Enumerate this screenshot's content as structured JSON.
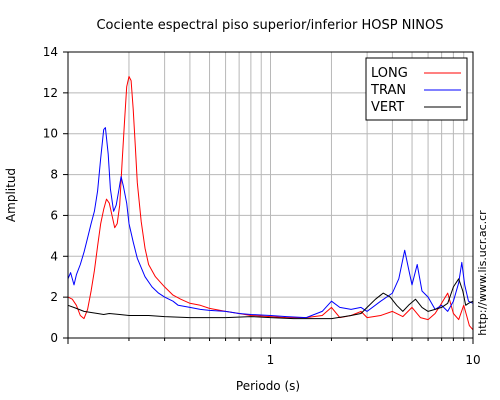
{
  "chart_data": {
    "type": "line",
    "title": "Cociente espectral piso superior/inferior  HOSP NINOS",
    "xlabel": "Periodo (s)",
    "ylabel": "Amplitud",
    "x_scale": "log",
    "xlim": [
      0.1,
      10
    ],
    "ylim": [
      0,
      14
    ],
    "x_tick_labels": [
      "1",
      "10"
    ],
    "y_ticks": [
      0,
      2,
      4,
      6,
      8,
      10,
      12,
      14
    ],
    "grid": true,
    "legend_position": "top-right",
    "side_text": "http://www.lis.ucr.ac.cr",
    "series": [
      {
        "name": "LONG",
        "color": "#ff0000",
        "points": [
          [
            0.1,
            2.0
          ],
          [
            0.105,
            1.9
          ],
          [
            0.11,
            1.6
          ],
          [
            0.115,
            1.1
          ],
          [
            0.12,
            0.95
          ],
          [
            0.125,
            1.4
          ],
          [
            0.13,
            2.3
          ],
          [
            0.135,
            3.3
          ],
          [
            0.14,
            4.5
          ],
          [
            0.145,
            5.6
          ],
          [
            0.15,
            6.3
          ],
          [
            0.155,
            6.8
          ],
          [
            0.16,
            6.6
          ],
          [
            0.165,
            6.0
          ],
          [
            0.17,
            5.4
          ],
          [
            0.175,
            5.6
          ],
          [
            0.18,
            6.5
          ],
          [
            0.185,
            8.6
          ],
          [
            0.19,
            10.5
          ],
          [
            0.195,
            12.3
          ],
          [
            0.2,
            12.8
          ],
          [
            0.205,
            12.6
          ],
          [
            0.21,
            11.2
          ],
          [
            0.215,
            9.4
          ],
          [
            0.22,
            7.6
          ],
          [
            0.23,
            5.7
          ],
          [
            0.24,
            4.4
          ],
          [
            0.25,
            3.6
          ],
          [
            0.27,
            3.0
          ],
          [
            0.3,
            2.5
          ],
          [
            0.33,
            2.1
          ],
          [
            0.36,
            1.9
          ],
          [
            0.4,
            1.7
          ],
          [
            0.45,
            1.6
          ],
          [
            0.5,
            1.45
          ],
          [
            0.6,
            1.3
          ],
          [
            0.7,
            1.2
          ],
          [
            0.8,
            1.1
          ],
          [
            1.0,
            1.05
          ],
          [
            1.2,
            1.0
          ],
          [
            1.5,
            1.0
          ],
          [
            1.8,
            1.1
          ],
          [
            2.0,
            1.5
          ],
          [
            2.2,
            1.0
          ],
          [
            2.5,
            1.1
          ],
          [
            2.8,
            1.3
          ],
          [
            3.0,
            1.0
          ],
          [
            3.5,
            1.1
          ],
          [
            4.0,
            1.3
          ],
          [
            4.5,
            1.05
          ],
          [
            5.0,
            1.5
          ],
          [
            5.5,
            1.0
          ],
          [
            6.0,
            0.9
          ],
          [
            6.5,
            1.2
          ],
          [
            7.0,
            1.7
          ],
          [
            7.5,
            2.2
          ],
          [
            8.0,
            1.2
          ],
          [
            8.5,
            0.9
          ],
          [
            9.0,
            1.6
          ],
          [
            9.3,
            1.1
          ],
          [
            9.6,
            0.6
          ],
          [
            10.0,
            0.4
          ]
        ]
      },
      {
        "name": "TRAN",
        "color": "#0000ff",
        "points": [
          [
            0.1,
            2.9
          ],
          [
            0.103,
            3.2
          ],
          [
            0.107,
            2.6
          ],
          [
            0.11,
            3.1
          ],
          [
            0.115,
            3.6
          ],
          [
            0.12,
            4.2
          ],
          [
            0.125,
            4.9
          ],
          [
            0.13,
            5.6
          ],
          [
            0.135,
            6.2
          ],
          [
            0.14,
            7.2
          ],
          [
            0.145,
            8.8
          ],
          [
            0.15,
            10.2
          ],
          [
            0.153,
            10.3
          ],
          [
            0.158,
            9.0
          ],
          [
            0.162,
            7.3
          ],
          [
            0.168,
            6.2
          ],
          [
            0.173,
            6.5
          ],
          [
            0.178,
            7.2
          ],
          [
            0.183,
            7.9
          ],
          [
            0.188,
            7.4
          ],
          [
            0.195,
            6.6
          ],
          [
            0.2,
            5.6
          ],
          [
            0.21,
            4.7
          ],
          [
            0.22,
            3.9
          ],
          [
            0.24,
            3.0
          ],
          [
            0.26,
            2.5
          ],
          [
            0.28,
            2.2
          ],
          [
            0.3,
            2.0
          ],
          [
            0.33,
            1.8
          ],
          [
            0.35,
            1.6
          ],
          [
            0.4,
            1.5
          ],
          [
            0.45,
            1.4
          ],
          [
            0.5,
            1.35
          ],
          [
            0.6,
            1.3
          ],
          [
            0.7,
            1.2
          ],
          [
            0.8,
            1.15
          ],
          [
            1.0,
            1.1
          ],
          [
            1.2,
            1.05
          ],
          [
            1.5,
            1.0
          ],
          [
            1.8,
            1.3
          ],
          [
            2.0,
            1.8
          ],
          [
            2.2,
            1.5
          ],
          [
            2.5,
            1.4
          ],
          [
            2.8,
            1.5
          ],
          [
            3.0,
            1.3
          ],
          [
            3.5,
            1.8
          ],
          [
            4.0,
            2.2
          ],
          [
            4.3,
            2.9
          ],
          [
            4.6,
            4.3
          ],
          [
            4.8,
            3.4
          ],
          [
            5.0,
            2.6
          ],
          [
            5.3,
            3.6
          ],
          [
            5.6,
            2.3
          ],
          [
            6.0,
            2.0
          ],
          [
            6.5,
            1.4
          ],
          [
            7.0,
            1.6
          ],
          [
            7.5,
            1.3
          ],
          [
            8.0,
            1.8
          ],
          [
            8.5,
            2.7
          ],
          [
            8.8,
            3.7
          ],
          [
            9.1,
            2.6
          ],
          [
            9.5,
            1.8
          ],
          [
            10.0,
            1.7
          ]
        ]
      },
      {
        "name": "VERT",
        "color": "#000000",
        "points": [
          [
            0.1,
            1.6
          ],
          [
            0.11,
            1.45
          ],
          [
            0.12,
            1.3
          ],
          [
            0.13,
            1.25
          ],
          [
            0.14,
            1.2
          ],
          [
            0.15,
            1.15
          ],
          [
            0.16,
            1.2
          ],
          [
            0.18,
            1.15
          ],
          [
            0.2,
            1.1
          ],
          [
            0.25,
            1.1
          ],
          [
            0.3,
            1.05
          ],
          [
            0.4,
            1.0
          ],
          [
            0.5,
            1.0
          ],
          [
            0.6,
            1.0
          ],
          [
            0.8,
            1.05
          ],
          [
            1.0,
            1.0
          ],
          [
            1.3,
            0.95
          ],
          [
            1.6,
            0.95
          ],
          [
            2.0,
            0.95
          ],
          [
            2.5,
            1.1
          ],
          [
            2.8,
            1.2
          ],
          [
            3.0,
            1.5
          ],
          [
            3.3,
            1.9
          ],
          [
            3.6,
            2.2
          ],
          [
            3.9,
            2.0
          ],
          [
            4.2,
            1.6
          ],
          [
            4.5,
            1.3
          ],
          [
            4.8,
            1.6
          ],
          [
            5.2,
            1.9
          ],
          [
            5.6,
            1.5
          ],
          [
            6.0,
            1.3
          ],
          [
            6.5,
            1.4
          ],
          [
            7.0,
            1.5
          ],
          [
            7.5,
            1.7
          ],
          [
            8.0,
            2.5
          ],
          [
            8.5,
            2.9
          ],
          [
            8.9,
            2.3
          ],
          [
            9.2,
            1.6
          ],
          [
            9.5,
            1.7
          ],
          [
            10.0,
            1.8
          ]
        ]
      }
    ]
  }
}
